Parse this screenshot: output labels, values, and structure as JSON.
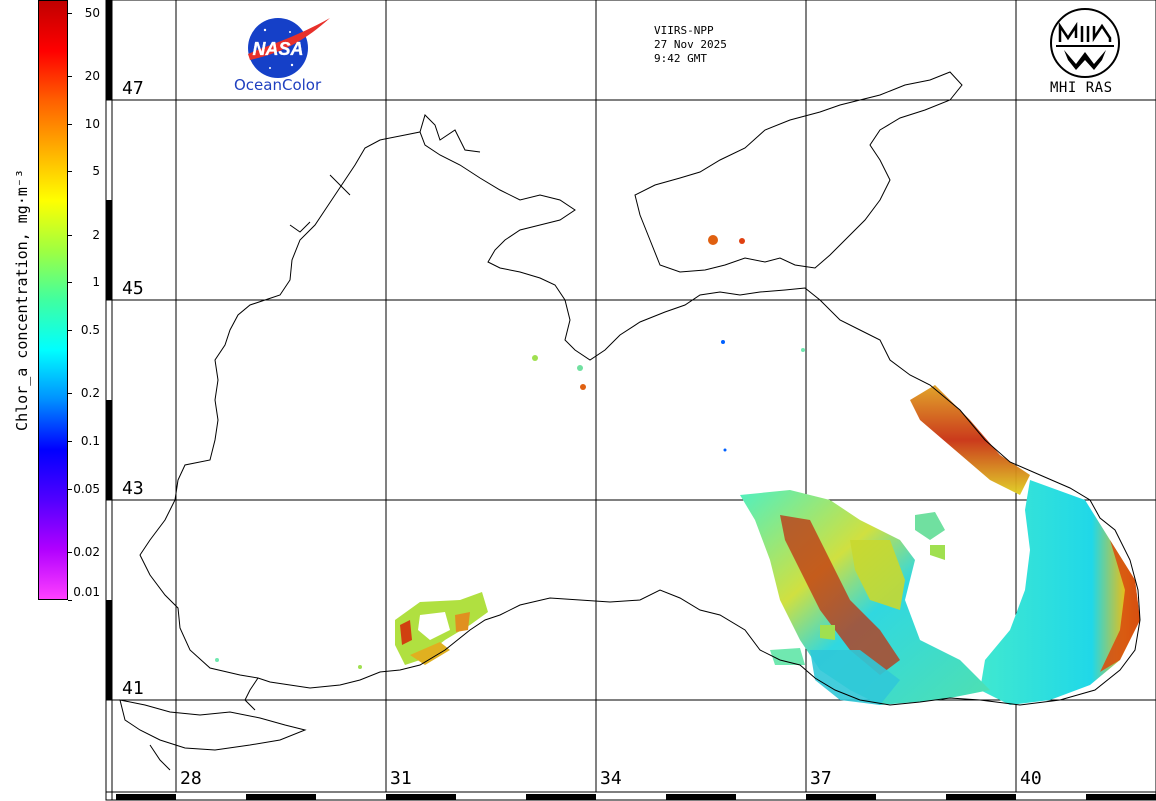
{
  "header": {
    "satellite": "VIIRS-NPP",
    "date": "27 Nov 2025",
    "time": "9:42 GMT"
  },
  "logos": {
    "nasa_text": "NASA",
    "oceancolor_text": "OceanColor",
    "mhi_text": "MHI RAS"
  },
  "colorbar": {
    "title": "Chlor_a concentration, mg·m⁻³",
    "ticks": [
      "50",
      "20",
      "10",
      "5",
      "2",
      "1",
      "0.5",
      "0.2",
      "0.1",
      "0.05",
      "0.02",
      "0.01"
    ],
    "tick_values": [
      50,
      20,
      10,
      5,
      2,
      1,
      0.5,
      0.2,
      0.1,
      0.05,
      0.02,
      0.01
    ],
    "range": [
      0.01,
      60
    ],
    "scale": "log",
    "colors": [
      "#ff40ff",
      "#b000ff",
      "#5000ff",
      "#0000ff",
      "#0090ff",
      "#00ffff",
      "#40ffa0",
      "#a0ff40",
      "#ffff00",
      "#ffb000",
      "#ff6000",
      "#ff0000",
      "#c00000"
    ]
  },
  "map": {
    "latitude_labels": [
      "47",
      "45",
      "43",
      "41"
    ],
    "longitude_labels": [
      "28",
      "31",
      "34",
      "37",
      "40"
    ],
    "land_color": "#ffffff",
    "coastline_color": "#000000"
  }
}
